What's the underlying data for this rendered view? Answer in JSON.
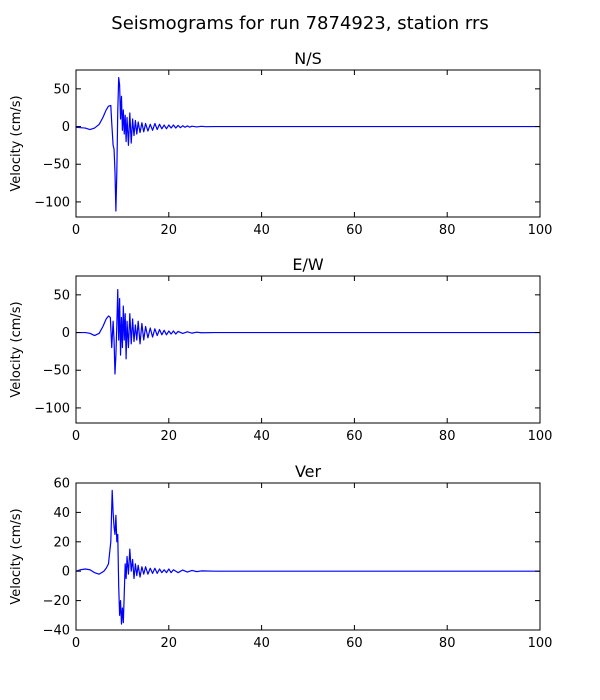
{
  "figure": {
    "title": "Seismograms for run 7874923, station rrs"
  },
  "colors": {
    "trace": "#0000ff",
    "axes": "#000000",
    "background": "#ffffff"
  },
  "chart_data": [
    {
      "type": "line",
      "title": "N/S",
      "xlabel": "",
      "ylabel": "Velocity (cm/s)",
      "xlim": [
        0,
        100
      ],
      "ylim": [
        -120,
        75
      ],
      "xticks": [
        0,
        20,
        40,
        60,
        80,
        100
      ],
      "yticks": [
        50,
        0,
        -50,
        -100
      ],
      "grid": false,
      "series": [
        {
          "color": "#0000ff",
          "x": [
            0,
            2,
            3,
            4,
            5,
            5.8,
            6.5,
            7,
            7.5,
            7.7,
            8,
            8.2,
            8.4,
            8.6,
            8.8,
            9.0,
            9.2,
            9.4,
            9.6,
            9.8,
            10.0,
            10.2,
            10.4,
            10.6,
            10.8,
            11.0,
            11.3,
            11.6,
            11.9,
            12.2,
            12.5,
            12.8,
            13.1,
            13.4,
            13.8,
            14.2,
            14.6,
            15.0,
            15.5,
            16.0,
            16.5,
            17.0,
            17.5,
            18.0,
            18.5,
            19.0,
            19.5,
            20.0,
            20.5,
            21.0,
            21.5,
            22.0,
            22.5,
            23.0,
            23.5,
            24.0,
            24.5,
            25.0,
            26.0,
            27.0,
            28.0,
            30.0,
            35.0,
            100.0
          ],
          "y": [
            -1,
            -2,
            -4,
            -2,
            3,
            12,
            22,
            27,
            28,
            5,
            -25,
            -30,
            -60,
            -112,
            -60,
            20,
            65,
            55,
            10,
            40,
            -5,
            22,
            -10,
            15,
            -20,
            12,
            -25,
            18,
            -22,
            10,
            -12,
            8,
            -10,
            6,
            -8,
            5,
            -7,
            4,
            -6,
            3,
            -5,
            4,
            -4,
            3,
            -3,
            2,
            -3,
            2,
            -2,
            2,
            -2,
            1.5,
            -1.5,
            1,
            -1,
            0.8,
            -0.8,
            0.5,
            -0.5,
            0.3,
            -0.2,
            0,
            0,
            0
          ]
        }
      ]
    },
    {
      "type": "line",
      "title": "E/W",
      "xlabel": "",
      "ylabel": "Velocity (cm/s)",
      "xlim": [
        0,
        100
      ],
      "ylim": [
        -120,
        75
      ],
      "xticks": [
        0,
        20,
        40,
        60,
        80,
        100
      ],
      "yticks": [
        50,
        0,
        -50,
        -100
      ],
      "grid": false,
      "series": [
        {
          "color": "#0000ff",
          "x": [
            0,
            2,
            3,
            4,
            5,
            5.8,
            6.5,
            7,
            7.4,
            7.7,
            8.0,
            8.2,
            8.4,
            8.6,
            8.8,
            9.0,
            9.2,
            9.4,
            9.6,
            9.8,
            10.0,
            10.2,
            10.4,
            10.6,
            10.8,
            11.0,
            11.3,
            11.6,
            11.9,
            12.2,
            12.5,
            12.8,
            13.1,
            13.4,
            13.8,
            14.2,
            14.6,
            15.0,
            15.5,
            16.0,
            16.5,
            17.0,
            17.5,
            18.0,
            18.5,
            19.0,
            19.5,
            20.0,
            20.5,
            21.0,
            21.5,
            22.0,
            23.0,
            24.0,
            25.0,
            26.0,
            27.0,
            30.0,
            35.0,
            100.0
          ],
          "y": [
            0,
            0,
            -1,
            -4,
            -1,
            8,
            18,
            22,
            20,
            -20,
            15,
            -10,
            -55,
            -30,
            10,
            57,
            -10,
            45,
            -30,
            20,
            -20,
            35,
            -10,
            25,
            -35,
            15,
            -20,
            25,
            -15,
            18,
            -12,
            10,
            -10,
            15,
            -15,
            12,
            -10,
            8,
            -7,
            6,
            -6,
            5,
            -4,
            4,
            -3,
            3,
            -3,
            2,
            -2,
            2,
            -2,
            1.5,
            -1.2,
            1,
            -0.8,
            0.5,
            -0.3,
            0,
            0,
            0
          ]
        }
      ]
    },
    {
      "type": "line",
      "title": "Ver",
      "xlabel": "",
      "ylabel": "Velocity (cm/s)",
      "xlim": [
        0,
        100
      ],
      "ylim": [
        -40,
        60
      ],
      "xticks": [
        0,
        20,
        40,
        60,
        80,
        100
      ],
      "yticks": [
        60,
        40,
        20,
        0,
        -20,
        -40
      ],
      "grid": false,
      "series": [
        {
          "color": "#0000ff",
          "x": [
            0,
            1,
            2,
            3,
            4,
            5,
            6,
            6.5,
            7,
            7.5,
            7.8,
            8.0,
            8.2,
            8.4,
            8.6,
            8.8,
            9.0,
            9.2,
            9.4,
            9.6,
            9.8,
            10.0,
            10.2,
            10.4,
            10.6,
            10.8,
            11.0,
            11.3,
            11.6,
            11.9,
            12.2,
            12.5,
            12.8,
            13.1,
            13.4,
            13.8,
            14.2,
            14.6,
            15.0,
            15.5,
            16.0,
            16.5,
            17.0,
            17.5,
            18.0,
            18.5,
            19.0,
            19.5,
            20.0,
            20.5,
            21.0,
            22.0,
            23.0,
            24.0,
            25.0,
            26.0,
            27.0,
            30.0,
            35.0,
            100.0
          ],
          "y": [
            0,
            1,
            1.5,
            1,
            -1,
            -2,
            0,
            2,
            5,
            20,
            55,
            40,
            30,
            25,
            38,
            20,
            25,
            -10,
            -30,
            -20,
            -36,
            -25,
            -35,
            -15,
            5,
            -5,
            10,
            -2,
            15,
            0,
            8,
            -5,
            5,
            -3,
            4,
            -4,
            3,
            -2,
            3,
            -2,
            2,
            -1.5,
            2,
            -1.5,
            1.5,
            -1,
            1,
            -1,
            1.5,
            -1,
            1,
            -1,
            0.8,
            -0.6,
            0.5,
            -0.3,
            0.2,
            0,
            0,
            0
          ]
        }
      ]
    }
  ]
}
